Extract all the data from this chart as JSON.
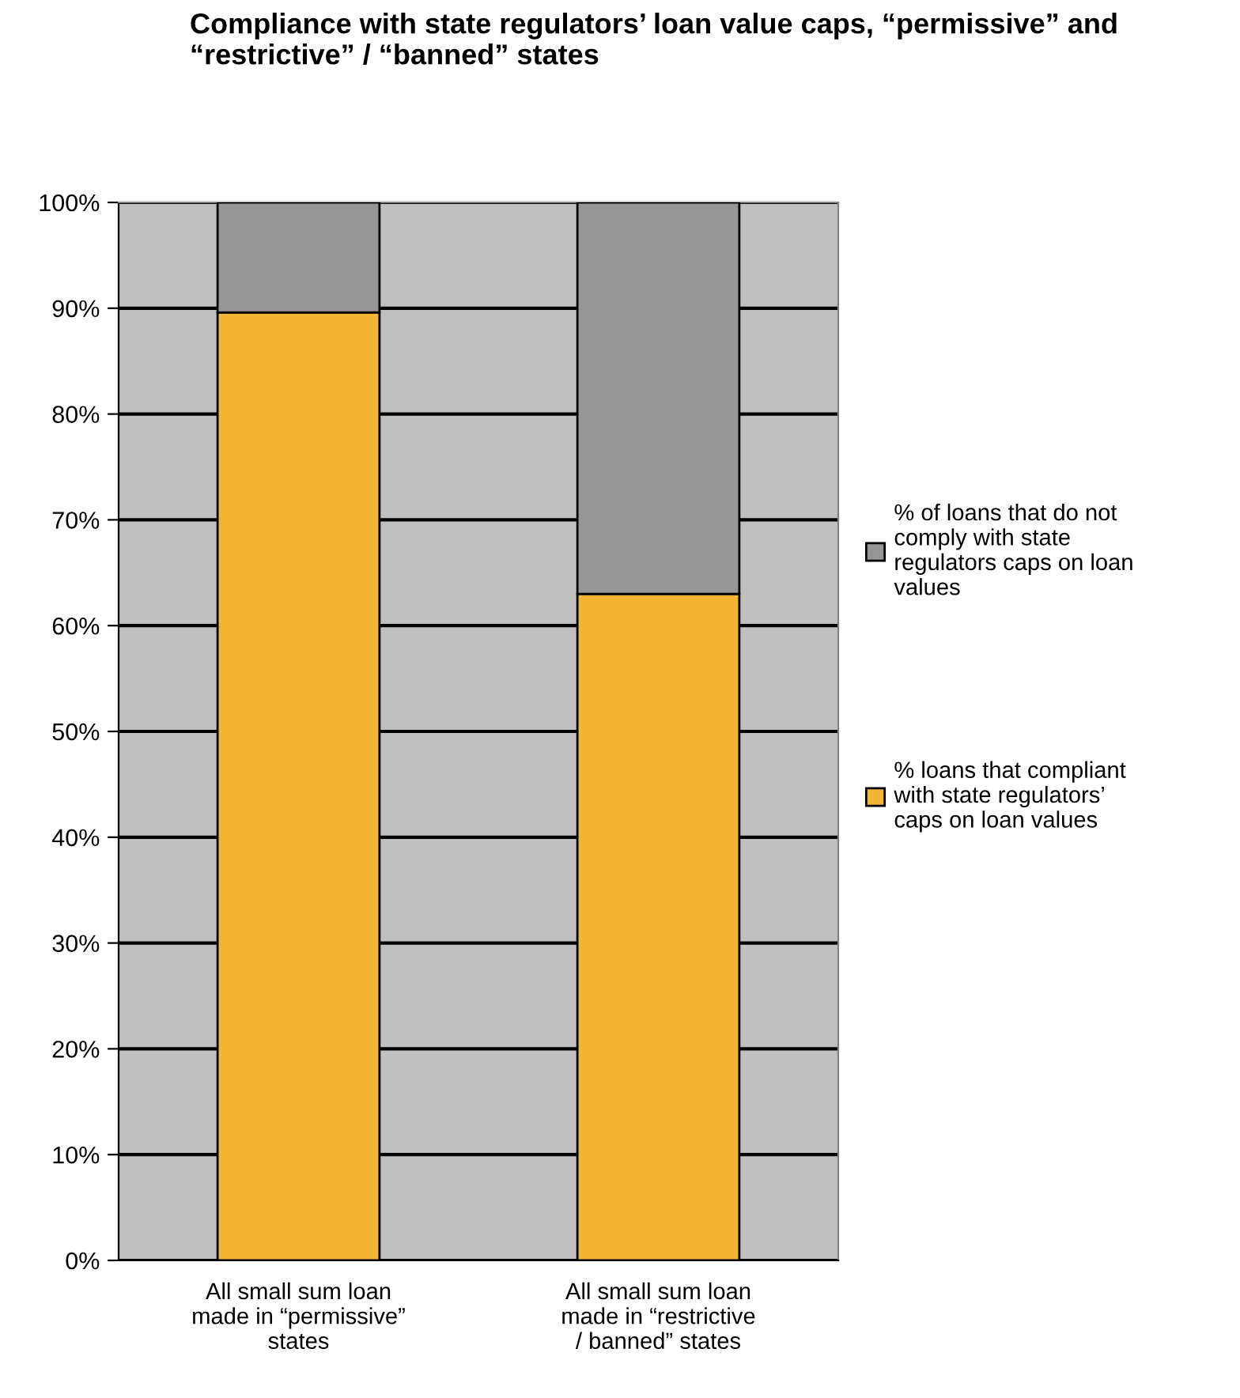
{
  "chart_data": {
    "type": "bar",
    "title": "Compliance with state regulators’ loan value caps, “permissive” and “restrictive” / “banned” states",
    "categories": [
      "All small sum loan made in “permissive” states",
      "All small sum loan made in “restrictive / banned” states"
    ],
    "stacked": true,
    "series": [
      {
        "name": "% loans that compliant with state regulators’ caps on loan values",
        "color": "#f2b534",
        "values": [
          89.6,
          63.0
        ]
      },
      {
        "name": "% of loans that do not comply with state regulators caps on loan values",
        "color": "#969696",
        "values": [
          10.4,
          37.0
        ]
      }
    ],
    "ylim": [
      0,
      100
    ],
    "yticks": [
      {
        "value": 0,
        "label": "0%"
      },
      {
        "value": 10,
        "label": "10%"
      },
      {
        "value": 20,
        "label": "20%"
      },
      {
        "value": 30,
        "label": "30%"
      },
      {
        "value": 40,
        "label": "40%"
      },
      {
        "value": 50,
        "label": "50%"
      },
      {
        "value": 60,
        "label": "60%"
      },
      {
        "value": 70,
        "label": "70%"
      },
      {
        "value": 80,
        "label": "80%"
      },
      {
        "value": 90,
        "label": "90%"
      },
      {
        "value": 100,
        "label": "100%"
      }
    ],
    "grid": "y",
    "legend": "right"
  }
}
